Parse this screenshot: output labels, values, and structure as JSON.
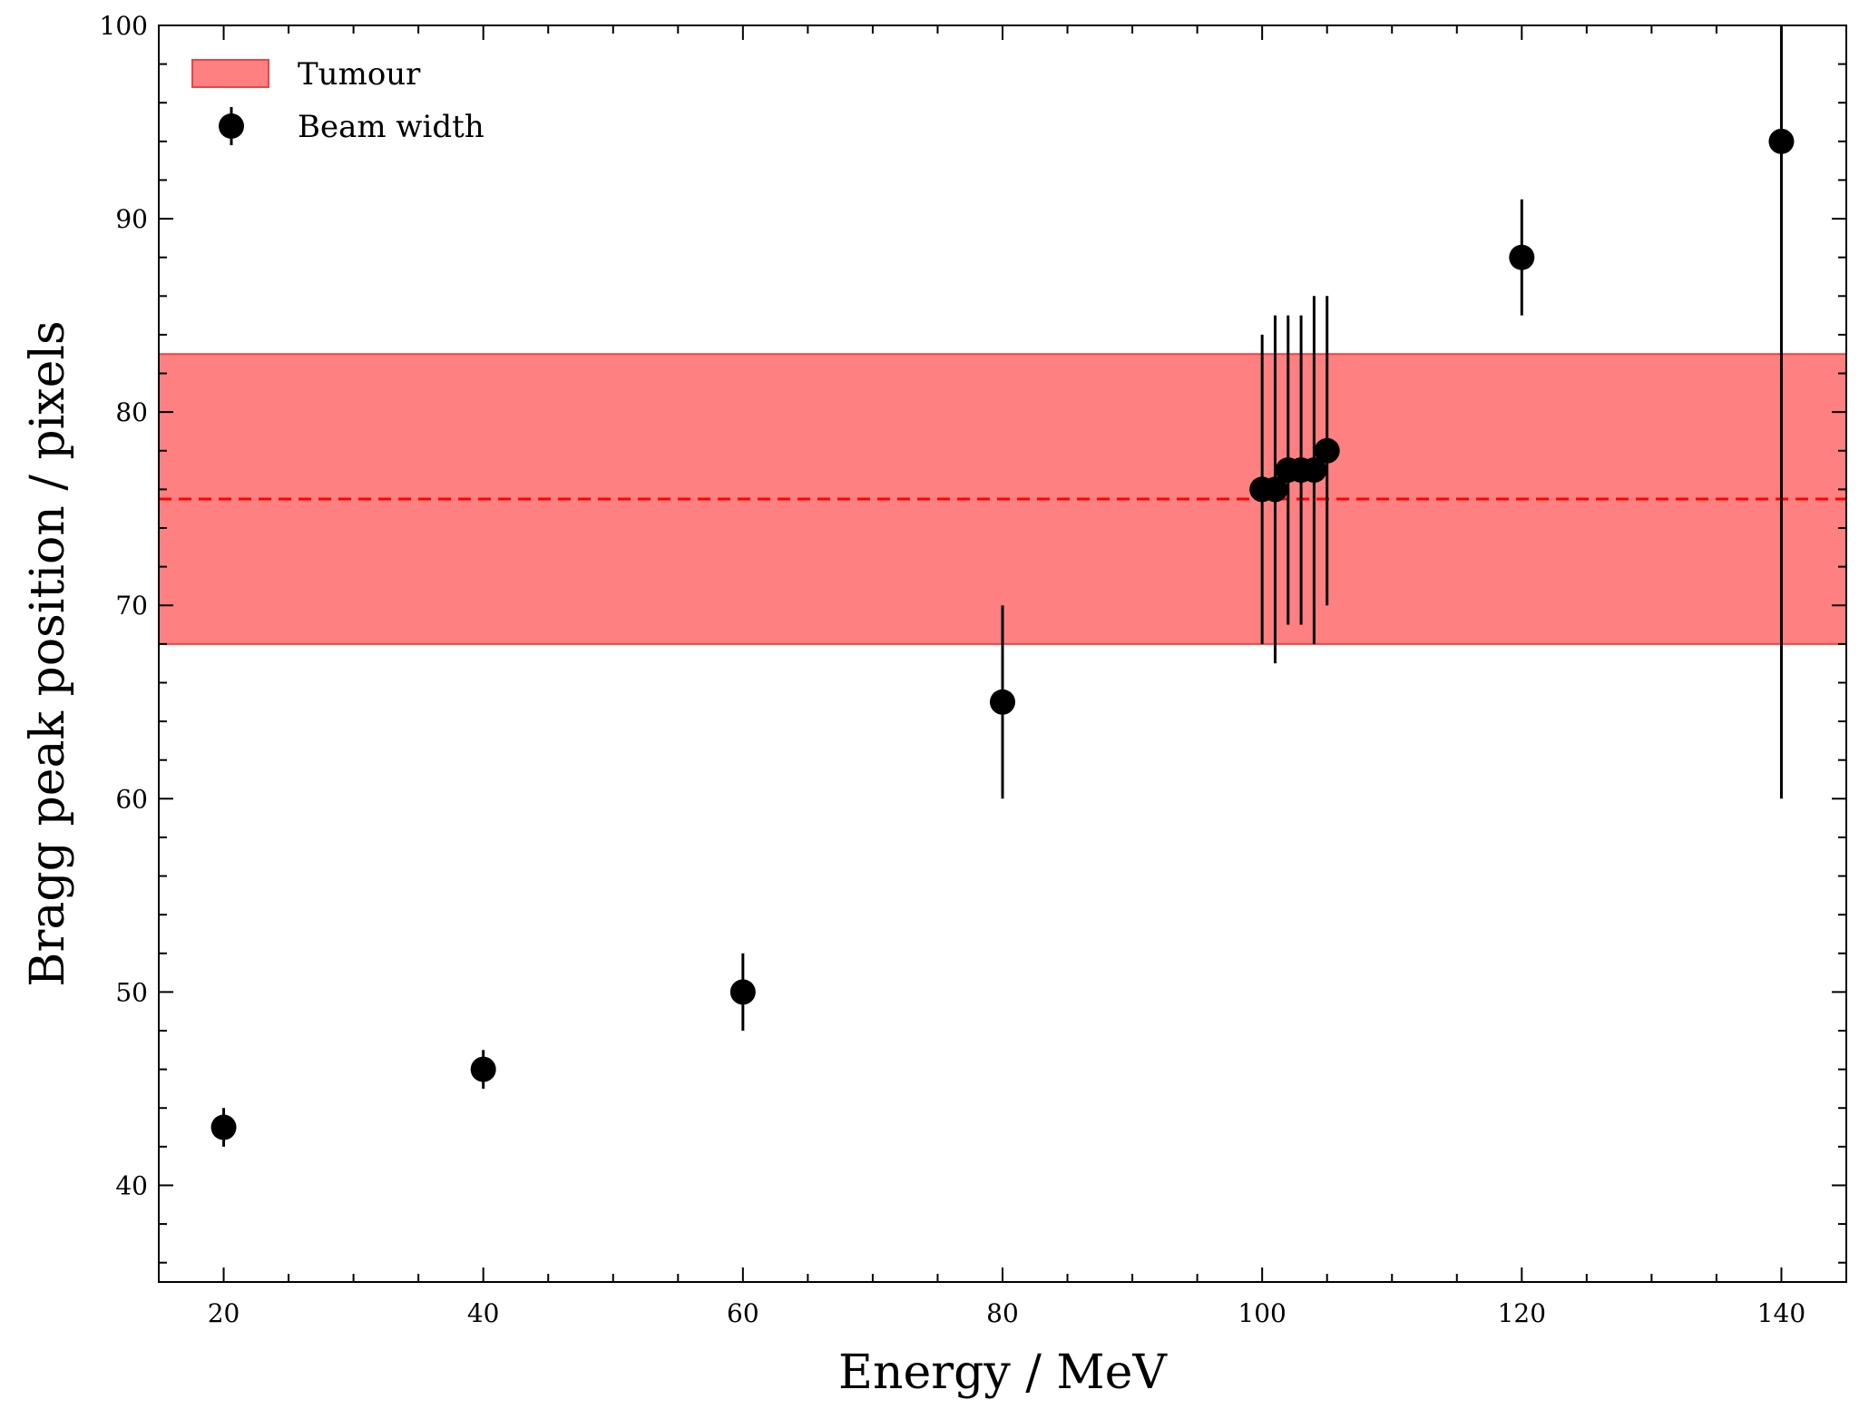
{
  "chart_data": {
    "type": "scatter",
    "title": "",
    "xlabel": "Energy / MeV",
    "ylabel": "Bragg peak position / pixels",
    "xlim": [
      15,
      145
    ],
    "ylim": [
      35,
      100
    ],
    "xticks": [
      20,
      40,
      60,
      80,
      100,
      120,
      140
    ],
    "yticks": [
      40,
      50,
      60,
      70,
      80,
      90,
      100
    ],
    "x_minor_step": 5,
    "y_minor_step": 2,
    "grid": false,
    "legend_position": "top-left",
    "band": {
      "name": "Tumour",
      "ymin": 68,
      "ymax": 83,
      "center": 75.5,
      "color": "#ff8080",
      "edge_color": "#ee4444",
      "line_color": "#ff0000"
    },
    "series": [
      {
        "name": "Beam width",
        "color": "#000000",
        "points": [
          {
            "x": 20,
            "y": 43,
            "ylow": 42,
            "yhigh": 44
          },
          {
            "x": 40,
            "y": 46,
            "ylow": 45,
            "yhigh": 47
          },
          {
            "x": 60,
            "y": 50,
            "ylow": 48,
            "yhigh": 52
          },
          {
            "x": 80,
            "y": 65,
            "ylow": 60,
            "yhigh": 70
          },
          {
            "x": 100,
            "y": 76,
            "ylow": 68,
            "yhigh": 84
          },
          {
            "x": 101,
            "y": 76,
            "ylow": 67,
            "yhigh": 85
          },
          {
            "x": 102,
            "y": 77,
            "ylow": 69,
            "yhigh": 85
          },
          {
            "x": 103,
            "y": 77,
            "ylow": 69,
            "yhigh": 85
          },
          {
            "x": 104,
            "y": 77,
            "ylow": 68,
            "yhigh": 86
          },
          {
            "x": 105,
            "y": 78,
            "ylow": 70,
            "yhigh": 86
          },
          {
            "x": 120,
            "y": 88,
            "ylow": 85,
            "yhigh": 91
          },
          {
            "x": 140,
            "y": 94,
            "ylow": 60,
            "yhigh": 100
          }
        ]
      }
    ]
  }
}
